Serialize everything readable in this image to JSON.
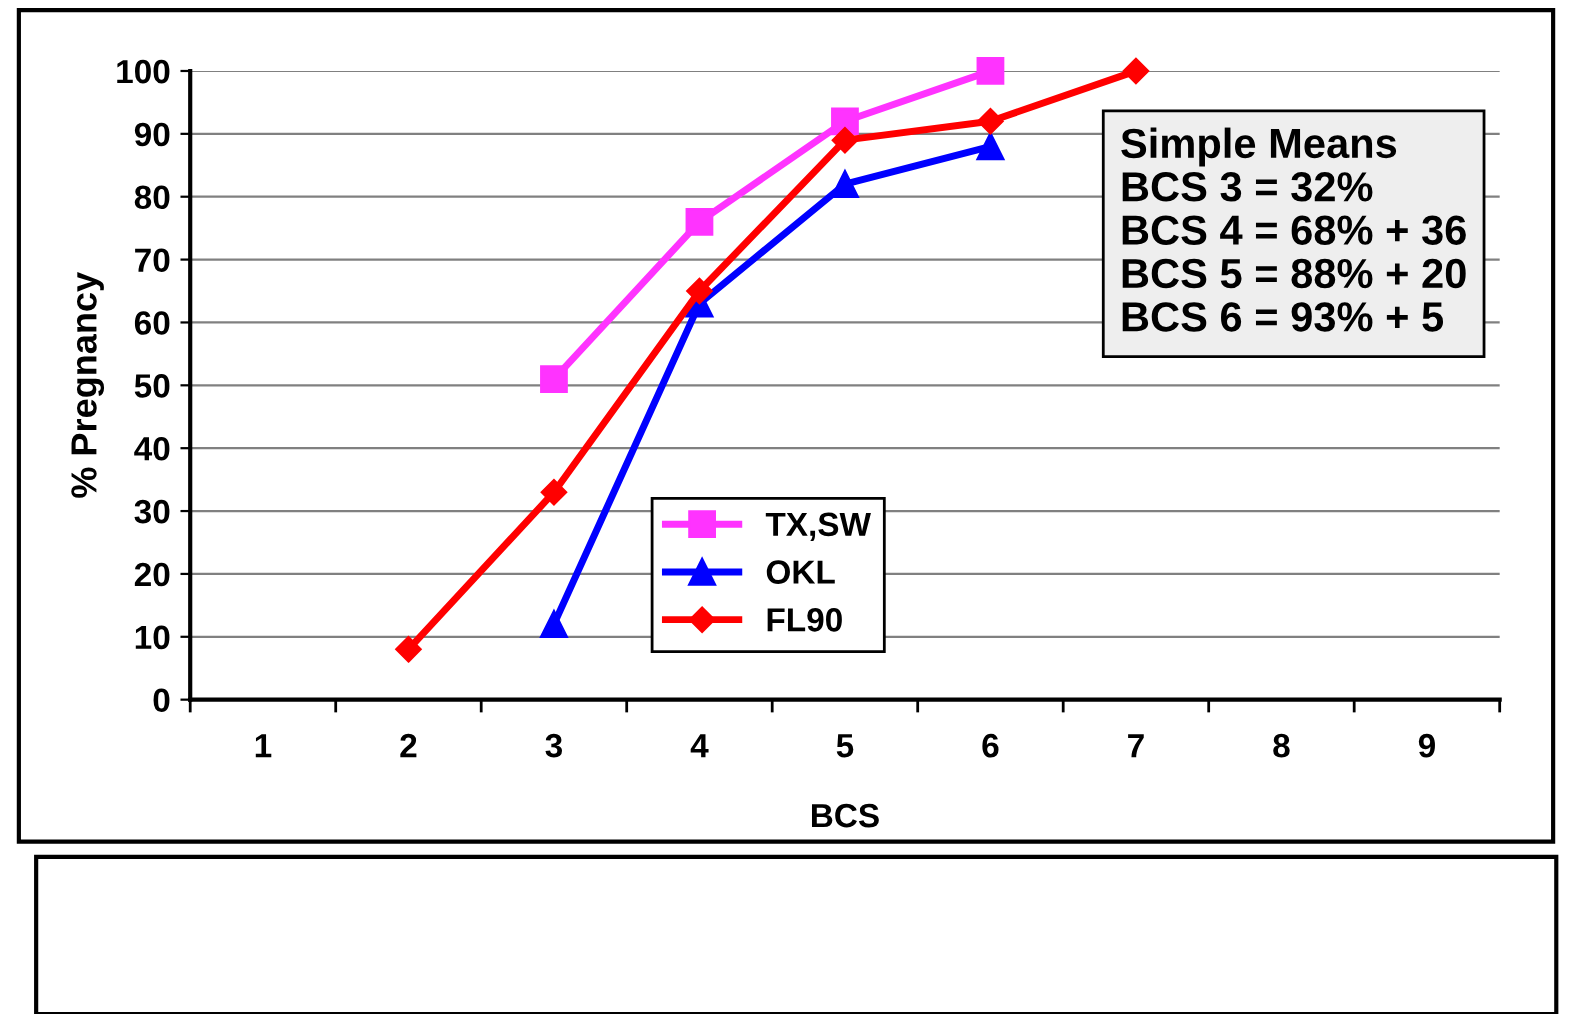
{
  "chart_data": {
    "type": "line",
    "xlabel": "BCS",
    "ylabel": "% Pregnancy",
    "categories": [
      "1",
      "2",
      "3",
      "4",
      "5",
      "6",
      "7",
      "8",
      "9"
    ],
    "series": [
      {
        "name": "TX,SW",
        "color": "#ff33ff",
        "marker": "square",
        "values": [
          null,
          null,
          51,
          76,
          92,
          100,
          null,
          null,
          null
        ]
      },
      {
        "name": "OKL",
        "color": "#0000ff",
        "marker": "triangle",
        "values": [
          null,
          null,
          12,
          63,
          82,
          88,
          null,
          null,
          null
        ]
      },
      {
        "name": "FL90",
        "color": "#ff0000",
        "marker": "diamond",
        "values": [
          null,
          8,
          33,
          65,
          89,
          92,
          100,
          null,
          null
        ]
      }
    ],
    "ylim": [
      0,
      100
    ],
    "yticks": [
      0,
      10,
      20,
      30,
      40,
      50,
      60,
      70,
      80,
      90,
      100
    ],
    "grid": "y",
    "legend": "bottom",
    "annotations": [
      "Simple Means",
      "BCS 3 = 32%",
      "BCS 4 = 68% + 36",
      "BCS 5 = 88% + 20",
      "BCS 6 = 93% + 5"
    ]
  }
}
